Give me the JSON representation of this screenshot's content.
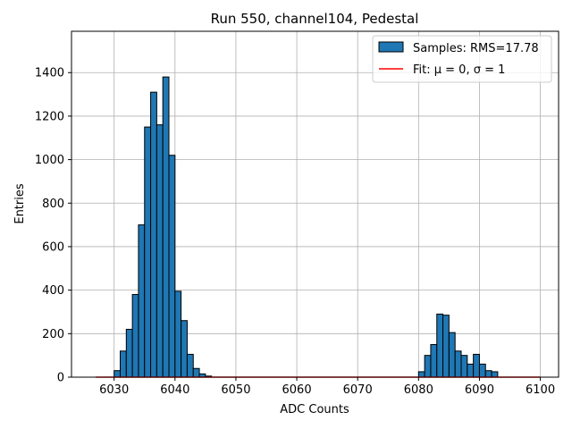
{
  "chart_data": {
    "type": "bar",
    "title": "Run 550, channel104, Pedestal",
    "xlabel": "ADC Counts",
    "ylabel": "Entries",
    "xlim": [
      6023,
      6103
    ],
    "ylim": [
      0,
      1590
    ],
    "xticks": [
      "6030",
      "6040",
      "6050",
      "6060",
      "6070",
      "6080",
      "6090",
      "6100"
    ],
    "yticks": [
      "0",
      "200",
      "400",
      "600",
      "800",
      "1000",
      "1200",
      "1400"
    ],
    "grid": true,
    "legend_position": "top-right",
    "bin_width": 1,
    "series": [
      {
        "name": "Samples: RMS=17.78",
        "kind": "histogram",
        "color": "#1f77b4",
        "edgecolor": "#000000",
        "bins_left": [
          6030,
          6031,
          6032,
          6033,
          6034,
          6035,
          6036,
          6037,
          6038,
          6039,
          6040,
          6041,
          6042,
          6043,
          6044,
          6045,
          6080,
          6081,
          6082,
          6083,
          6084,
          6085,
          6086,
          6087,
          6088,
          6089,
          6090,
          6091,
          6092
        ],
        "values": [
          30,
          120,
          220,
          380,
          700,
          1150,
          1310,
          1160,
          1380,
          1020,
          395,
          260,
          105,
          40,
          15,
          5,
          25,
          100,
          150,
          290,
          285,
          205,
          120,
          100,
          60,
          105,
          60,
          30,
          25
        ]
      },
      {
        "name": "Fit: μ = 0, σ = 1",
        "kind": "line",
        "color": "#ff0000",
        "x": [
          6027,
          6100
        ],
        "y": [
          0,
          0
        ]
      }
    ]
  }
}
